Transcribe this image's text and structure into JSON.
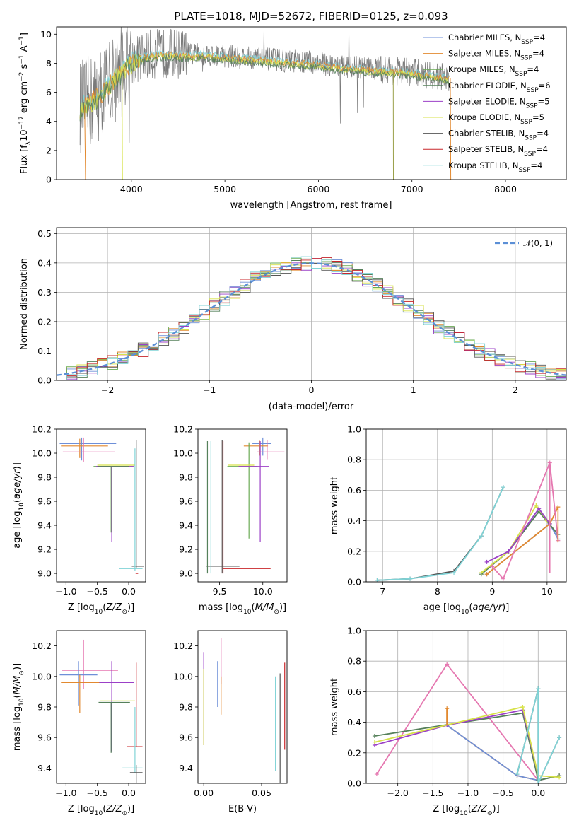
{
  "figure": {
    "title": "PLATE=1018, MJD=52672, FIBERID=0125, z=0.093"
  },
  "colors": {
    "Chabrier MILES": "#6e8fd8",
    "Salpeter MILES": "#e2892f",
    "Kroupa MILES": "#6aab55",
    "Chabrier ELODIE": "#55805a",
    "Salpeter ELODIE": "#9b40c7",
    "Kroupa ELODIE": "#d7e24a",
    "Chabrier STELIB": "#555555",
    "Salpeter STELIB": "#c8262a",
    "Kroupa STELIB": "#7fd3d6",
    "pink": "#e577b0",
    "gauss": "#5b8fd6"
  },
  "chart_data": [
    {
      "id": "spectrum",
      "type": "line",
      "title": "PLATE=1018, MJD=52672, FIBERID=0125, z=0.093",
      "xlabel": "wavelength [Angstrom, rest frame]",
      "ylabel": "Flux [f_λ 10^-17 erg cm^-2 s^-1 A^-1]",
      "xlim": [
        3200,
        8650
      ],
      "ylim": [
        0,
        10.5
      ],
      "xticks": [
        4000,
        5000,
        6000,
        7000,
        8000
      ],
      "yticks": [
        0,
        2,
        4,
        6,
        8,
        10
      ],
      "legend": "right",
      "grid": false,
      "series": [
        {
          "name": "Chabrier MILES, N_SSP=4",
          "sub": "SSP",
          "eq": "=4"
        },
        {
          "name": "Salpeter MILES, N_SSP=4",
          "sub": "SSP",
          "eq": "=4"
        },
        {
          "name": "Kroupa MILES, N_SSP=4",
          "sub": "SSP",
          "eq": "=4"
        },
        {
          "name": "Chabrier ELODIE, N_SSP=6",
          "sub": "SSP",
          "eq": "=6"
        },
        {
          "name": "Salpeter ELODIE, N_SSP=5",
          "sub": "SSP",
          "eq": "=5"
        },
        {
          "name": "Kroupa ELODIE, N_SSP=5",
          "sub": "SSP",
          "eq": "=5"
        },
        {
          "name": "Chabrier STELIB, N_SSP=4",
          "sub": "SSP",
          "eq": "=4"
        },
        {
          "name": "Salpeter STELIB, N_SSP=4",
          "sub": "SSP",
          "eq": "=4"
        },
        {
          "name": "Kroupa STELIB, N_SSP=4",
          "sub": "SSP",
          "eq": "=4"
        }
      ],
      "legend_prefix": [
        "Chabrier MILES, N",
        "Salpeter MILES, N",
        "Kroupa MILES, N",
        "Chabrier ELODIE, N",
        "Salpeter ELODIE, N",
        "Kroupa ELODIE, N",
        "Chabrier STELIB, N",
        "Salpeter STELIB, N",
        "Kroupa STELIB, N"
      ],
      "continuum": {
        "x": [
          3450,
          3550,
          3650,
          3750,
          3850,
          3950,
          4050,
          4200,
          4400,
          4600,
          4800,
          5000,
          5200,
          5400,
          5600,
          5800,
          6000,
          6200,
          6400,
          6600,
          6800,
          7000,
          7200,
          7400
        ],
        "y": [
          5.0,
          5.3,
          5.8,
          6.5,
          7.2,
          7.9,
          8.3,
          8.6,
          8.7,
          8.6,
          8.6,
          8.5,
          8.4,
          8.3,
          8.2,
          8.1,
          8.0,
          7.8,
          7.7,
          7.6,
          7.5,
          7.4,
          7.2,
          7.0
        ]
      }
    },
    {
      "id": "residuals",
      "type": "histogram",
      "xlabel": "(data-model)/error",
      "ylabel": "Normed distribution",
      "xlim": [
        -2.5,
        2.5
      ],
      "ylim": [
        0,
        0.52
      ],
      "xticks": [
        -2,
        -1,
        0,
        1,
        2
      ],
      "yticks": [
        0.0,
        0.1,
        0.2,
        0.3,
        0.4,
        0.5
      ],
      "grid": true,
      "legend": "upper right",
      "reference_curve": {
        "name": "N(0,1)"
      }
    },
    {
      "id": "age-vs-Z",
      "type": "errorbar",
      "xlabel": "Z [log10(Z/Z⊙)]",
      "ylabel": "age [log10(age/yr)]",
      "xlim": [
        -1.15,
        0.27
      ],
      "ylim": [
        8.93,
        10.2
      ],
      "xticks": [
        -1.0,
        -0.5,
        0.0
      ],
      "yticks": [
        9.0,
        9.2,
        9.4,
        9.6,
        9.8,
        10.0,
        10.2
      ],
      "points": [
        {
          "s": "Chabrier MILES",
          "x": -0.75,
          "xl": 0.35,
          "xh": 0.55,
          "y": 10.08,
          "yl": 0.14,
          "yh": 0.05
        },
        {
          "s": "Salpeter MILES",
          "x": -0.78,
          "xl": 0.3,
          "xh": 0.45,
          "y": 10.06,
          "yl": 0.1,
          "yh": 0.06
        },
        {
          "s": "pink",
          "x": -0.72,
          "xl": 0.33,
          "xh": 0.5,
          "y": 10.01,
          "yl": 0.08,
          "yh": 0.12
        },
        {
          "s": "Kroupa MILES",
          "x": -0.28,
          "xl": 0.28,
          "xh": 0.35,
          "y": 9.89,
          "yl": 0.55,
          "yh": 0.0
        },
        {
          "s": "Salpeter ELODIE",
          "x": -0.27,
          "xl": 0.25,
          "xh": 0.35,
          "y": 9.89,
          "yl": 0.63,
          "yh": 0.0
        },
        {
          "s": "Kroupa ELODIE",
          "x": -0.25,
          "xl": 0.25,
          "xh": 0.35,
          "y": 9.9,
          "yl": 0.0,
          "yh": 0.0
        },
        {
          "s": "Chabrier ELODIE",
          "x": -0.3,
          "xl": 0.2,
          "xh": 0.3,
          "y": 9.89,
          "yl": 0.0,
          "yh": 0.0
        },
        {
          "s": "Chabrier STELIB",
          "x": 0.12,
          "xl": 0.07,
          "xh": 0.12,
          "y": 9.06,
          "yl": 0.02,
          "yh": 1.05
        },
        {
          "s": "Kroupa STELIB",
          "x": 0.1,
          "xl": 0.25,
          "xh": 0.12,
          "y": 9.04,
          "yl": 0.02,
          "yh": 1.0
        },
        {
          "s": "Salpeter STELIB",
          "x": 0.13,
          "xl": 0.02,
          "xh": 0.02,
          "y": 9.0,
          "yl": 0.0,
          "yh": 0.0
        }
      ]
    },
    {
      "id": "age-vs-mass",
      "type": "errorbar",
      "xlabel": "mass [log10(M/M⊙)]",
      "ylabel": "",
      "xlim": [
        9.25,
        10.28
      ],
      "ylim": [
        8.93,
        10.2
      ],
      "xticks": [
        9.5,
        10.0
      ],
      "yticks": [
        9.0,
        9.2,
        9.4,
        9.6,
        9.8,
        10.0,
        10.2
      ],
      "points": [
        {
          "s": "Chabrier MILES",
          "x": 10.0,
          "xl": 0.12,
          "xh": 0.1,
          "y": 10.08,
          "yl": 0.1,
          "yh": 0.05
        },
        {
          "s": "Salpeter MILES",
          "x": 9.96,
          "xl": 0.18,
          "xh": 0.1,
          "y": 10.06,
          "yl": 0.08,
          "yh": 0.05
        },
        {
          "s": "pink",
          "x": 10.05,
          "xl": 0.12,
          "xh": 0.2,
          "y": 10.01,
          "yl": 0.06,
          "yh": 0.1
        },
        {
          "s": "Kroupa MILES",
          "x": 9.84,
          "xl": 0.25,
          "xh": 0.1,
          "y": 9.89,
          "yl": 0.6,
          "yh": 0.2
        },
        {
          "s": "Salpeter ELODIE",
          "x": 9.97,
          "xl": 0.25,
          "xh": 0.1,
          "y": 9.89,
          "yl": 0.63,
          "yh": 0.21
        },
        {
          "s": "Kroupa ELODIE",
          "x": 9.8,
          "xl": 0.2,
          "xh": 0.1,
          "y": 9.9,
          "yl": 0.0,
          "yh": 0.0
        },
        {
          "s": "Chabrier STELIB",
          "x": 9.53,
          "xl": 0.18,
          "xh": 0.2,
          "y": 9.06,
          "yl": 0.06,
          "yh": 1.05
        },
        {
          "s": "Salpeter STELIB",
          "x": 9.54,
          "xl": 0.0,
          "xh": 0.55,
          "y": 9.04,
          "yl": 0.04,
          "yh": 1.06
        },
        {
          "s": "Kroupa STELIB",
          "x": 9.4,
          "xl": 0.0,
          "xh": 0.0,
          "y": 9.0,
          "yl": 0.0,
          "yh": 1.1
        },
        {
          "s": "Chabrier ELODIE",
          "x": 9.36,
          "xl": 0.0,
          "xh": 0.0,
          "y": 9.0,
          "yl": 0.0,
          "yh": 1.1
        }
      ]
    },
    {
      "id": "massweight-vs-age",
      "type": "line",
      "xlabel": "age [log10(age/yr)]",
      "ylabel": "mass weight",
      "xlim": [
        6.7,
        10.35
      ],
      "ylim": [
        0,
        1.0
      ],
      "xticks": [
        7,
        8,
        9,
        10
      ],
      "yticks": [
        0.0,
        0.2,
        0.4,
        0.6,
        0.8,
        1.0
      ],
      "grid": true,
      "series": [
        {
          "s": "Chabrier STELIB",
          "x": [
            6.9,
            7.5,
            8.3,
            8.8,
            9.2
          ],
          "y": [
            0.01,
            0.02,
            0.07,
            0.3,
            0.62
          ]
        },
        {
          "s": "Kroupa STELIB",
          "x": [
            6.9,
            7.5,
            8.3,
            8.8,
            9.2
          ],
          "y": [
            0.01,
            0.02,
            0.06,
            0.3,
            0.62
          ]
        },
        {
          "s": "Chabrier MILES",
          "x": [
            8.9,
            10.05,
            10.2
          ],
          "y": [
            0.05,
            0.38,
            0.28
          ]
        },
        {
          "s": "Salpeter MILES",
          "x": [
            8.9,
            10.05,
            10.2
          ],
          "y": [
            0.05,
            0.38,
            0.49
          ]
        },
        {
          "s": "Chabrier ELODIE",
          "x": [
            8.8,
            9.3,
            9.85,
            10.2
          ],
          "y": [
            0.05,
            0.2,
            0.46,
            0.31
          ]
        },
        {
          "s": "Kroupa ELODIE",
          "x": [
            8.8,
            9.3,
            9.8,
            10.0
          ],
          "y": [
            0.06,
            0.2,
            0.5,
            0.4
          ]
        },
        {
          "s": "Salpeter ELODIE",
          "x": [
            8.9,
            9.3,
            9.85,
            10.05
          ],
          "y": [
            0.13,
            0.2,
            0.48,
            0.38
          ]
        },
        {
          "s": "pink",
          "x": [
            9.0,
            9.2,
            10.05,
            10.2
          ],
          "y": [
            0.1,
            0.02,
            0.78,
            0.27
          ]
        }
      ]
    },
    {
      "id": "mass-vs-Z",
      "type": "errorbar",
      "xlabel": "Z [log10(Z/Z⊙)]",
      "ylabel": "mass [log10(M/M⊙)]",
      "xlim": [
        -1.15,
        0.27
      ],
      "ylim": [
        9.3,
        10.3
      ],
      "xticks": [
        -1.0,
        -0.5,
        0.0
      ],
      "yticks": [
        9.4,
        9.6,
        9.8,
        10.0,
        10.2
      ],
      "points": [
        {
          "s": "pink",
          "x": -0.72,
          "xl": 0.35,
          "xh": 0.55,
          "y": 10.04,
          "yl": 0.12,
          "yh": 0.2
        },
        {
          "s": "Chabrier MILES",
          "x": -0.8,
          "xl": 0.3,
          "xh": 0.3,
          "y": 10.01,
          "yl": 0.2,
          "yh": 0.09
        },
        {
          "s": "Salpeter MILES",
          "x": -0.78,
          "xl": 0.3,
          "xh": 0.55,
          "y": 9.96,
          "yl": 0.2,
          "yh": 0.05
        },
        {
          "s": "Salpeter ELODIE",
          "x": -0.27,
          "xl": 0.2,
          "xh": 0.35,
          "y": 9.96,
          "yl": 0.45,
          "yh": 0.14
        },
        {
          "s": "Kroupa ELODIE",
          "x": -0.25,
          "xl": 0.2,
          "xh": 0.35,
          "y": 9.84,
          "yl": 0.0,
          "yh": 0.0
        },
        {
          "s": "Chabrier ELODIE",
          "x": -0.28,
          "xl": 0.2,
          "xh": 0.3,
          "y": 9.83,
          "yl": 0.33,
          "yh": 0.0
        },
        {
          "s": "Salpeter STELIB",
          "x": 0.12,
          "xl": 0.15,
          "xh": 0.1,
          "y": 9.54,
          "yl": 0.0,
          "yh": 0.55
        },
        {
          "s": "Kroupa STELIB",
          "x": 0.1,
          "xl": 0.2,
          "xh": 0.12,
          "y": 9.4,
          "yl": 0.03,
          "yh": 0.4
        },
        {
          "s": "Chabrier STELIB",
          "x": 0.12,
          "xl": 0.1,
          "xh": 0.1,
          "y": 9.37,
          "yl": 0.07,
          "yh": 0.05
        }
      ]
    },
    {
      "id": "mass-vs-EBV",
      "type": "errorbar",
      "xlabel": "E(B-V)",
      "ylabel": "",
      "xlim": [
        -0.005,
        0.072
      ],
      "ylim": [
        9.3,
        10.3
      ],
      "xticks": [
        0.0,
        0.05
      ],
      "yticks": [
        9.4,
        9.6,
        9.8,
        10.0,
        10.2
      ],
      "points": [
        {
          "s": "Salpeter ELODIE",
          "x": 0.0,
          "xl": 0,
          "xh": 0,
          "y": 10.0,
          "yl": 0.45,
          "yh": 0.16
        },
        {
          "s": "Kroupa ELODIE",
          "x": 0.0,
          "xl": 0,
          "xh": 0,
          "y": 9.8,
          "yl": 0.25,
          "yh": 0.25
        },
        {
          "s": "Chabrier MILES",
          "x": 0.012,
          "xl": 0,
          "xh": 0,
          "y": 10.0,
          "yl": 0.2,
          "yh": 0.1
        },
        {
          "s": "pink",
          "x": 0.015,
          "xl": 0,
          "xh": 0,
          "y": 10.05,
          "yl": 0.1,
          "yh": 0.2
        },
        {
          "s": "Salpeter MILES",
          "x": 0.015,
          "xl": 0,
          "xh": 0,
          "y": 9.95,
          "yl": 0.2,
          "yh": 0.05
        },
        {
          "s": "Kroupa STELIB",
          "x": 0.062,
          "xl": 0,
          "xh": 0,
          "y": 9.7,
          "yl": 0.32,
          "yh": 0.3
        },
        {
          "s": "Chabrier STELIB",
          "x": 0.066,
          "xl": 0,
          "xh": 0,
          "y": 9.7,
          "yl": 0.4,
          "yh": 0.32
        },
        {
          "s": "Salpeter STELIB",
          "x": 0.07,
          "xl": 0,
          "xh": 0,
          "y": 9.8,
          "yl": 0.28,
          "yh": 0.29
        }
      ]
    },
    {
      "id": "massweight-vs-Z",
      "type": "line",
      "xlabel": "Z [log10(Z/Z⊙)]",
      "ylabel": "mass weight",
      "xlim": [
        -2.45,
        0.4
      ],
      "ylim": [
        0,
        1.0
      ],
      "xticks": [
        -2.0,
        -1.5,
        -1.0,
        -0.5,
        0.0
      ],
      "yticks": [
        0.0,
        0.2,
        0.4,
        0.6,
        0.8,
        1.0
      ],
      "grid": true,
      "series": [
        {
          "s": "pink",
          "x": [
            -2.3,
            -1.3,
            0.0,
            0.3
          ],
          "y": [
            0.06,
            0.78,
            0.02,
            0.05
          ]
        },
        {
          "s": "Salpeter MILES",
          "x": [
            -1.3,
            -1.3,
            -0.3,
            0.0,
            0.3
          ],
          "y": [
            0.49,
            0.38,
            0.05,
            0.02,
            0.05
          ]
        },
        {
          "s": "Chabrier MILES",
          "x": [
            -1.3,
            -0.3,
            0.0,
            0.3
          ],
          "y": [
            0.38,
            0.05,
            0.02,
            0.05
          ]
        },
        {
          "s": "Chabrier ELODIE",
          "x": [
            -2.33,
            -0.22,
            0.0,
            0.3
          ],
          "y": [
            0.31,
            0.46,
            0.02,
            0.05
          ]
        },
        {
          "s": "Salpeter ELODIE",
          "x": [
            -2.33,
            -1.3,
            -0.22,
            0.0
          ],
          "y": [
            0.25,
            0.38,
            0.48,
            0.05
          ]
        },
        {
          "s": "Kroupa ELODIE",
          "x": [
            -2.33,
            -0.22,
            0.0,
            0.3
          ],
          "y": [
            0.27,
            0.5,
            0.05,
            0.04
          ]
        },
        {
          "s": "Chabrier STELIB",
          "x": [
            -0.3,
            0.0,
            0.0,
            0.3
          ],
          "y": [
            0.06,
            0.62,
            0.0,
            0.3
          ]
        },
        {
          "s": "Kroupa STELIB",
          "x": [
            -0.3,
            0.0,
            0.0,
            0.3
          ],
          "y": [
            0.06,
            0.62,
            0.0,
            0.3
          ]
        }
      ]
    }
  ]
}
